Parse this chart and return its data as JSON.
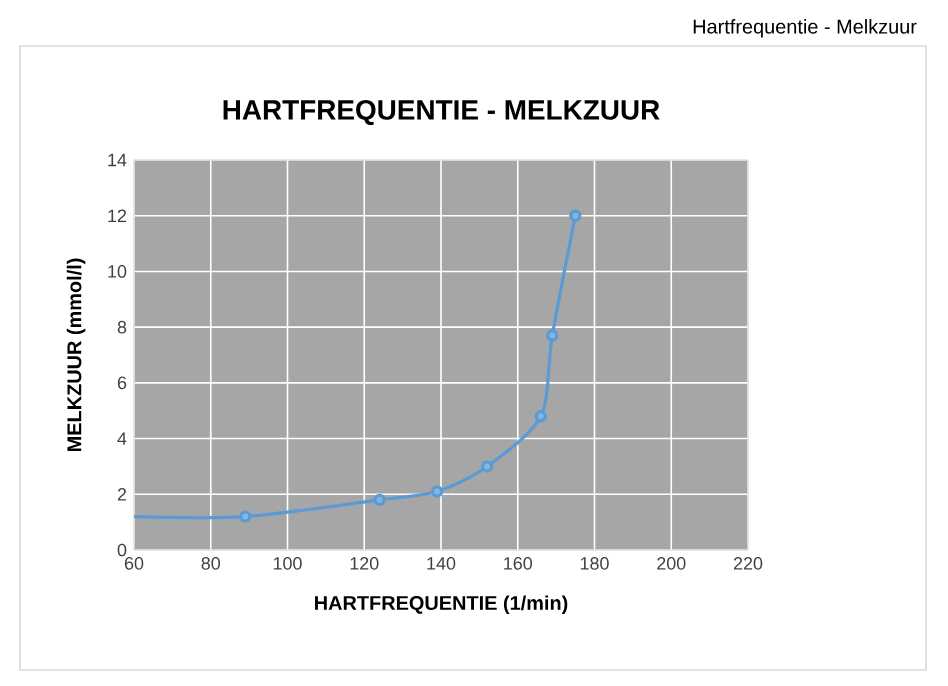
{
  "chart_data": {
    "type": "line",
    "title": "HARTFREQUENTIE - MELKZUUR",
    "xlabel": "HARTFREQUENTIE (1/min)",
    "ylabel": "MELKZUUR (mmol/l)",
    "annotations": [
      "Hartfrequentie - Melkzuur"
    ],
    "series": [
      {
        "color": "#5b9bd5",
        "x": [
          60,
          89,
          124,
          139,
          152,
          166,
          169,
          175
        ],
        "values": [
          1.2,
          1.2,
          1.8,
          2.1,
          3.0,
          4.8,
          7.7,
          12.0
        ]
      }
    ],
    "xlim": [
      60,
      220
    ],
    "xticks": [
      60,
      80,
      100,
      120,
      140,
      160,
      180,
      200,
      220
    ],
    "ylim": [
      0,
      14
    ],
    "yticks": [
      0,
      2,
      4,
      6,
      8,
      10,
      12,
      14
    ],
    "grid": true,
    "marker": "circle",
    "line_style": "solid"
  }
}
